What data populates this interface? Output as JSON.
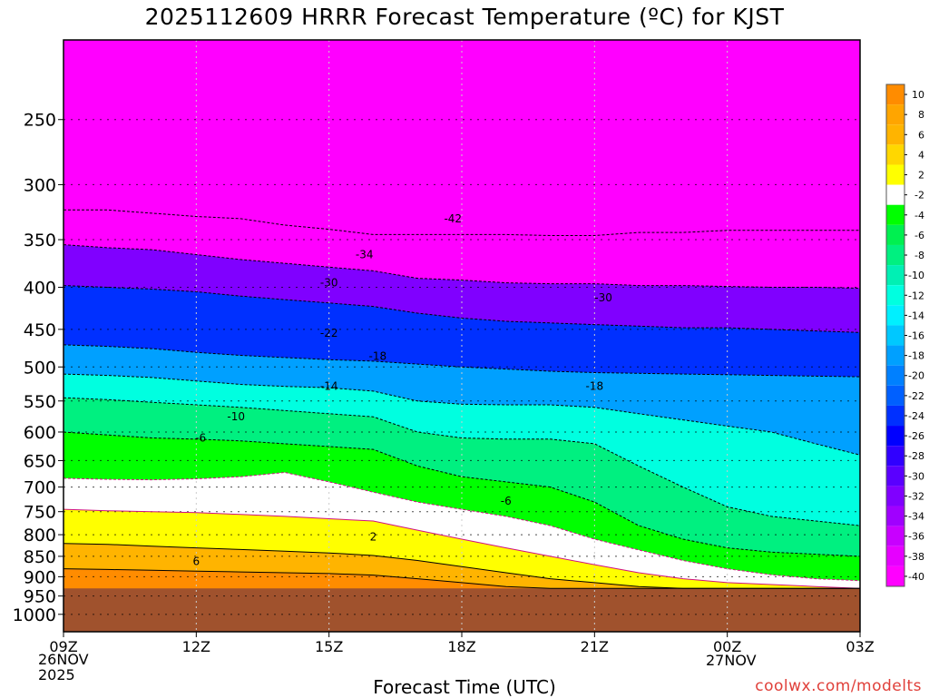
{
  "title": "2025112609 HRRR Forecast Temperature (ºC) for KJST",
  "credit": "coolwx.com/modelts",
  "chart_data": {
    "type": "heatmap",
    "title": "2025112609 HRRR Forecast Temperature (ºC) for KJST",
    "xlabel": "Forecast Time (UTC)",
    "ylabel": "",
    "y_scale": "log-pressure",
    "y_inverted": true,
    "yticks": [
      250,
      300,
      350,
      400,
      450,
      500,
      550,
      600,
      650,
      700,
      750,
      800,
      850,
      900,
      950,
      1000
    ],
    "yrange_hPa": [
      200,
      1050
    ],
    "xticks": [
      {
        "label": "09Z",
        "hour": 0
      },
      {
        "label": "12Z",
        "hour": 3
      },
      {
        "label": "15Z",
        "hour": 6
      },
      {
        "label": "18Z",
        "hour": 9
      },
      {
        "label": "21Z",
        "hour": 12
      },
      {
        "label": "00Z",
        "hour": 15
      },
      {
        "label": "03Z",
        "hour": 18
      }
    ],
    "start_date_label": [
      "26NOV",
      "2025"
    ],
    "second_date_label": "27NOV",
    "grid": "dotted",
    "surface_color": "#a0522d",
    "surface_pressure_hPa": [
      930,
      930,
      930,
      930,
      930,
      930,
      930
    ],
    "colorbar": {
      "placement": "right",
      "levels": [
        10,
        8,
        6,
        4,
        2,
        -2,
        -4,
        -6,
        -8,
        -10,
        -12,
        -14,
        -16,
        -18,
        -20,
        -22,
        -24,
        -26,
        -28,
        -30,
        -32,
        -34,
        -36,
        -38,
        -40
      ],
      "colors": [
        "#ff8c00",
        "#ffa500",
        "#ffb400",
        "#ffd700",
        "#ffff00",
        "#ffffff",
        "#00ff00",
        "#00f050",
        "#00f080",
        "#00f0b4",
        "#00ffe0",
        "#00f0ff",
        "#00c8ff",
        "#00a0ff",
        "#0080ff",
        "#0060ff",
        "#0030ff",
        "#0000ff",
        "#3000ff",
        "#5a00ff",
        "#8000ff",
        "#a000ff",
        "#c800ff",
        "#e600ff",
        "#ff00ff"
      ]
    },
    "isotherms": [
      {
        "label": "-42",
        "hour": 8.8,
        "pressure": 330
      },
      {
        "label": "-34",
        "hour": 6.8,
        "pressure": 365
      },
      {
        "label": "-30",
        "hour": 6.0,
        "pressure": 395
      },
      {
        "label": "-30",
        "hour": 12.2,
        "pressure": 412
      },
      {
        "label": "-22",
        "hour": 6.0,
        "pressure": 455
      },
      {
        "label": "-18",
        "hour": 7.1,
        "pressure": 485
      },
      {
        "label": "-18",
        "hour": 12.0,
        "pressure": 528
      },
      {
        "label": "-14",
        "hour": 6.0,
        "pressure": 528
      },
      {
        "label": "-10",
        "hour": 3.9,
        "pressure": 575
      },
      {
        "label": "-6",
        "hour": 3.1,
        "pressure": 610
      },
      {
        "label": "-6",
        "hour": 10.0,
        "pressure": 728
      },
      {
        "label": "2",
        "hour": 7.0,
        "pressure": 805
      },
      {
        "label": "6",
        "hour": 3.0,
        "pressure": 862
      }
    ],
    "layers": [
      {
        "name": "-40",
        "pressure": [
          322,
          322,
          325,
          328,
          330,
          336,
          340,
          345,
          345,
          345,
          345,
          346,
          346,
          343,
          343,
          341,
          341,
          341,
          341
        ]
      },
      {
        "name": "-32",
        "pressure": [
          355,
          358,
          360,
          365,
          370,
          374,
          378,
          382,
          390,
          392,
          395,
          396,
          396,
          398,
          398,
          399,
          400,
          400,
          401
        ]
      },
      {
        "name": "-24",
        "pressure": [
          398,
          400,
          402,
          405,
          410,
          414,
          418,
          422,
          430,
          436,
          440,
          442,
          444,
          446,
          448,
          448,
          450,
          452,
          454
        ]
      },
      {
        "name": "-18",
        "pressure": [
          470,
          472,
          475,
          480,
          484,
          487,
          490,
          492,
          496,
          500,
          503,
          506,
          508,
          509,
          510,
          511,
          512,
          513,
          514
        ]
      },
      {
        "name": "-12",
        "pressure": [
          510,
          512,
          515,
          520,
          525,
          528,
          530,
          535,
          550,
          555,
          556,
          556,
          560,
          570,
          580,
          590,
          600,
          620,
          640
        ]
      },
      {
        "name": "-8",
        "pressure": [
          545,
          548,
          552,
          556,
          560,
          565,
          570,
          575,
          600,
          610,
          612,
          612,
          620,
          660,
          700,
          740,
          760,
          770,
          780
        ]
      },
      {
        "name": "-4",
        "pressure": [
          600,
          605,
          610,
          612,
          615,
          620,
          625,
          630,
          660,
          680,
          690,
          700,
          730,
          780,
          810,
          830,
          840,
          845,
          850
        ]
      },
      {
        "name": "-2",
        "pressure": [
          683,
          685,
          686,
          684,
          680,
          672,
          690,
          710,
          730,
          745,
          760,
          780,
          810,
          835,
          860,
          880,
          895,
          905,
          910
        ]
      },
      {
        "name": "2",
        "pressure": [
          745,
          748,
          750,
          752,
          756,
          760,
          765,
          770,
          790,
          810,
          830,
          850,
          870,
          890,
          905,
          915,
          920,
          925,
          930
        ]
      },
      {
        "name": "6",
        "pressure": [
          820,
          822,
          826,
          830,
          834,
          838,
          842,
          848,
          860,
          875,
          890,
          905,
          915,
          925,
          930,
          930,
          930,
          930,
          930
        ]
      },
      {
        "name": "10",
        "pressure": [
          880,
          882,
          884,
          886,
          888,
          890,
          892,
          896,
          905,
          915,
          925,
          930,
          930,
          930,
          930,
          930,
          930,
          930,
          930
        ]
      }
    ]
  }
}
